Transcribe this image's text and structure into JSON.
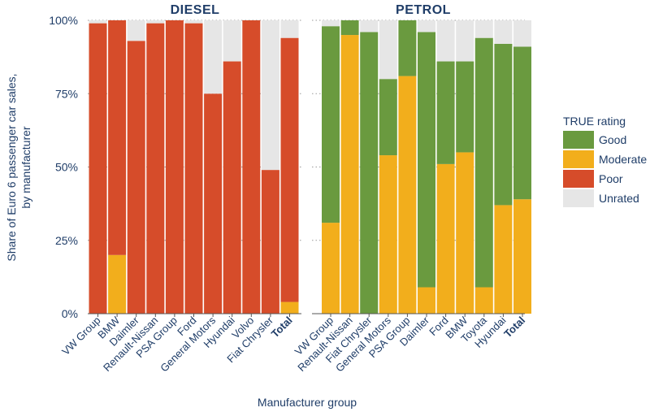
{
  "chart_data": {
    "type": "bar",
    "stacked": true,
    "ylabel": "Share of Euro 6 passenger car sales, by manufacturer",
    "ylabel_lines": [
      "Share of Euro 6 passenger car sales,",
      "by manufacturer"
    ],
    "xlabel": "Manufacturer group",
    "yticks": [
      "0%",
      "25%",
      "50%",
      "75%",
      "100%"
    ],
    "ylim": [
      0,
      100
    ],
    "grid": true,
    "legend": {
      "title": "TRUE rating",
      "placement": "right",
      "items": [
        {
          "name": "Good",
          "color": "#6a9a3f"
        },
        {
          "name": "Moderate",
          "color": "#f2ae1c"
        },
        {
          "name": "Poor",
          "color": "#d64c2a"
        },
        {
          "name": "Unrated",
          "color": "#e6e6e6"
        }
      ]
    },
    "panels": [
      {
        "title": "DIESEL",
        "categories": [
          "VW Group",
          "BMW",
          "Daimler",
          "Renault-Nissan",
          "PSA Group",
          "Ford",
          "General Motors",
          "Hyundai",
          "Volvo",
          "Fiat Chrysler",
          "Total"
        ],
        "bold_category": "Total",
        "series": [
          {
            "name": "Poor",
            "values": [
              99,
              80,
              93,
              99,
              100,
              99,
              75,
              86,
              100,
              49,
              90
            ]
          },
          {
            "name": "Moderate",
            "values": [
              0,
              20,
              0,
              0,
              0,
              0,
              0,
              0,
              0,
              0,
              4
            ]
          },
          {
            "name": "Good",
            "values": [
              0,
              0,
              0,
              0,
              0,
              0,
              0,
              0,
              0,
              0,
              0
            ]
          },
          {
            "name": "Unrated",
            "values": [
              1,
              0,
              7,
              1,
              0,
              1,
              25,
              14,
              0,
              51,
              6
            ]
          }
        ]
      },
      {
        "title": "PETROL",
        "categories": [
          "VW Group",
          "Renault-Nissan",
          "Fiat Chrysler",
          "General Motors",
          "PSA Group",
          "Daimler",
          "Ford",
          "BMW",
          "Toyota",
          "Hyundai",
          "Total"
        ],
        "bold_category": "Total",
        "series": [
          {
            "name": "Moderate",
            "values": [
              31,
              95,
              0,
              54,
              81,
              9,
              51,
              55,
              9,
              37,
              39
            ]
          },
          {
            "name": "Good",
            "values": [
              67,
              5,
              96,
              26,
              19,
              87,
              35,
              31,
              85,
              55,
              52
            ]
          },
          {
            "name": "Poor",
            "values": [
              0,
              0,
              0,
              0,
              0,
              0,
              0,
              0,
              0,
              0,
              0
            ]
          },
          {
            "name": "Unrated",
            "values": [
              2,
              0,
              4,
              20,
              0,
              4,
              14,
              14,
              6,
              8,
              9
            ]
          }
        ]
      }
    ]
  }
}
